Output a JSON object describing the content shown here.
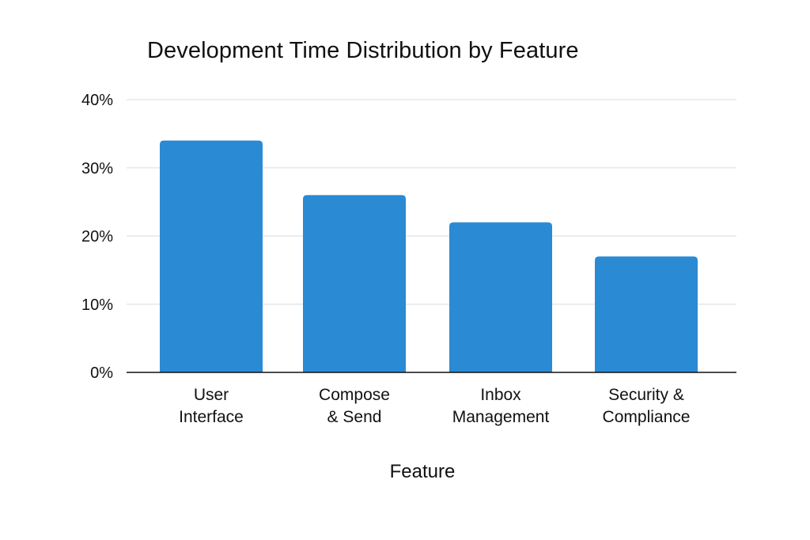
{
  "chart_data": {
    "type": "bar",
    "title": "Development Time Distribution by Feature",
    "xlabel": "Feature",
    "ylabel": "",
    "categories": [
      [
        "User",
        "Interface"
      ],
      [
        "Compose",
        "& Send"
      ],
      [
        "Inbox",
        "Management"
      ],
      [
        "Security &",
        "Compliance"
      ]
    ],
    "values": [
      34,
      26,
      22,
      17
    ],
    "ylim": [
      0,
      40
    ],
    "yticks": [
      0,
      10,
      20,
      30,
      40
    ],
    "ytick_labels": [
      "0%",
      "10%",
      "20%",
      "30%",
      "40%"
    ],
    "grid": true,
    "legend": "none",
    "colors": {
      "bar": "#2a8ad4",
      "grid": "#dde3e8",
      "axis": "#111111"
    }
  }
}
